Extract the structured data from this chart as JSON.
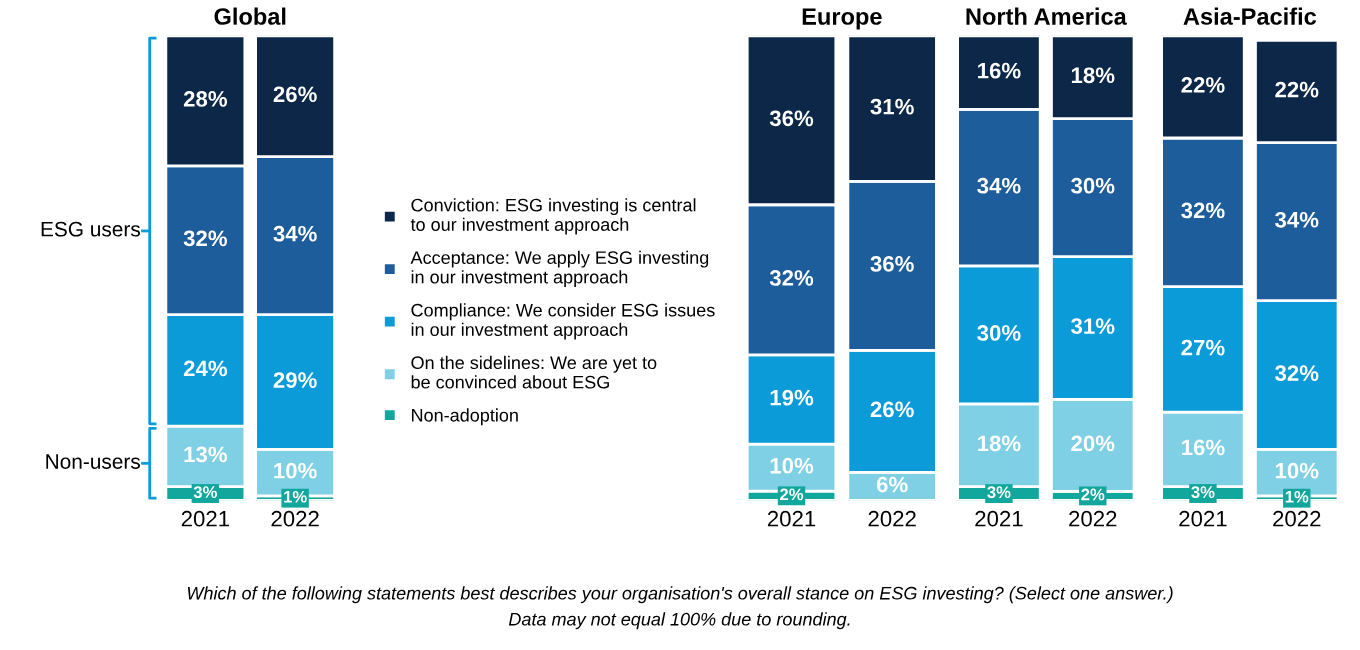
{
  "chart_data": [
    {
      "type": "bar",
      "title": "Global",
      "categories": [
        "2021",
        "2022"
      ],
      "stacked": true,
      "tick_labels": "x",
      "legend": "right",
      "series": [
        {
          "name": "Non-adoption",
          "color": "#12a79d",
          "values": [
            3,
            1
          ],
          "value_labels": [
            "3%",
            "1%"
          ]
        },
        {
          "name": "On the sidelines: We are yet to\nbe convinced about ESG",
          "color": "#7fd0e4",
          "values": [
            13,
            10
          ],
          "value_labels": [
            "13%",
            "10%"
          ]
        },
        {
          "name": "Compliance: We consider ESG issues\nin our investment approach",
          "color": "#0b9bd8",
          "values": [
            24,
            29
          ],
          "value_labels": [
            "24%",
            "29%"
          ]
        },
        {
          "name": "Acceptance: We apply ESG investing\nin our investment approach",
          "color": "#1d5d9b",
          "values": [
            32,
            34
          ],
          "value_labels": [
            "32%",
            "34%"
          ]
        },
        {
          "name": "Conviction: ESG investing is central\nto our investment approach",
          "color": "#0c2748",
          "values": [
            28,
            26
          ],
          "value_labels": [
            "28%",
            "26%"
          ]
        }
      ],
      "annotations": [
        "ESG users",
        "Non-users",
        "Which of the following statements best describes your organisation's overall stance on ESG investing? (Select one answer.)",
        "Data may not equal 100% due to rounding."
      ]
    },
    {
      "type": "bar",
      "title": "Europe",
      "categories": [
        "2021",
        "2022"
      ],
      "stacked": true,
      "tick_labels": "x",
      "series": [
        {
          "color": "#12a79d",
          "values": [
            2,
            null
          ],
          "value_labels": [
            "2%",
            null
          ]
        },
        {
          "color": "#7fd0e4",
          "values": [
            10,
            6
          ],
          "value_labels": [
            "10%",
            "6%"
          ]
        },
        {
          "color": "#0b9bd8",
          "values": [
            19,
            26
          ],
          "value_labels": [
            "19%",
            "26%"
          ]
        },
        {
          "color": "#1d5d9b",
          "values": [
            32,
            36
          ],
          "value_labels": [
            "32%",
            "36%"
          ]
        },
        {
          "color": "#0c2748",
          "values": [
            36,
            31
          ],
          "value_labels": [
            "36%",
            "31%"
          ]
        }
      ]
    },
    {
      "type": "bar",
      "title": "North America",
      "categories": [
        "2021",
        "2022"
      ],
      "stacked": true,
      "tick_labels": "x",
      "series": [
        {
          "color": "#12a79d",
          "values": [
            3,
            2
          ],
          "value_labels": [
            "3%",
            "2%"
          ]
        },
        {
          "color": "#7fd0e4",
          "values": [
            18,
            20
          ],
          "value_labels": [
            "18%",
            "20%"
          ]
        },
        {
          "color": "#0b9bd8",
          "values": [
            30,
            31
          ],
          "value_labels": [
            "30%",
            "31%"
          ]
        },
        {
          "color": "#1d5d9b",
          "values": [
            34,
            30
          ],
          "value_labels": [
            "34%",
            "30%"
          ]
        },
        {
          "color": "#0c2748",
          "values": [
            16,
            18
          ],
          "value_labels": [
            "16%",
            "18%"
          ]
        }
      ]
    },
    {
      "type": "bar",
      "title": "Asia-Pacific",
      "categories": [
        "2021",
        "2022"
      ],
      "stacked": true,
      "tick_labels": "x",
      "series": [
        {
          "color": "#12a79d",
          "values": [
            3,
            1
          ],
          "value_labels": [
            "3%",
            "1%"
          ]
        },
        {
          "color": "#7fd0e4",
          "values": [
            16,
            10
          ],
          "value_labels": [
            "16%",
            "10%"
          ]
        },
        {
          "color": "#0b9bd8",
          "values": [
            27,
            32
          ],
          "value_labels": [
            "27%",
            "32%"
          ]
        },
        {
          "color": "#1d5d9b",
          "values": [
            32,
            34
          ],
          "value_labels": [
            "32%",
            "34%"
          ]
        },
        {
          "color": "#0c2748",
          "values": [
            22,
            22
          ],
          "value_labels": [
            "22%",
            "22%"
          ]
        }
      ]
    }
  ]
}
